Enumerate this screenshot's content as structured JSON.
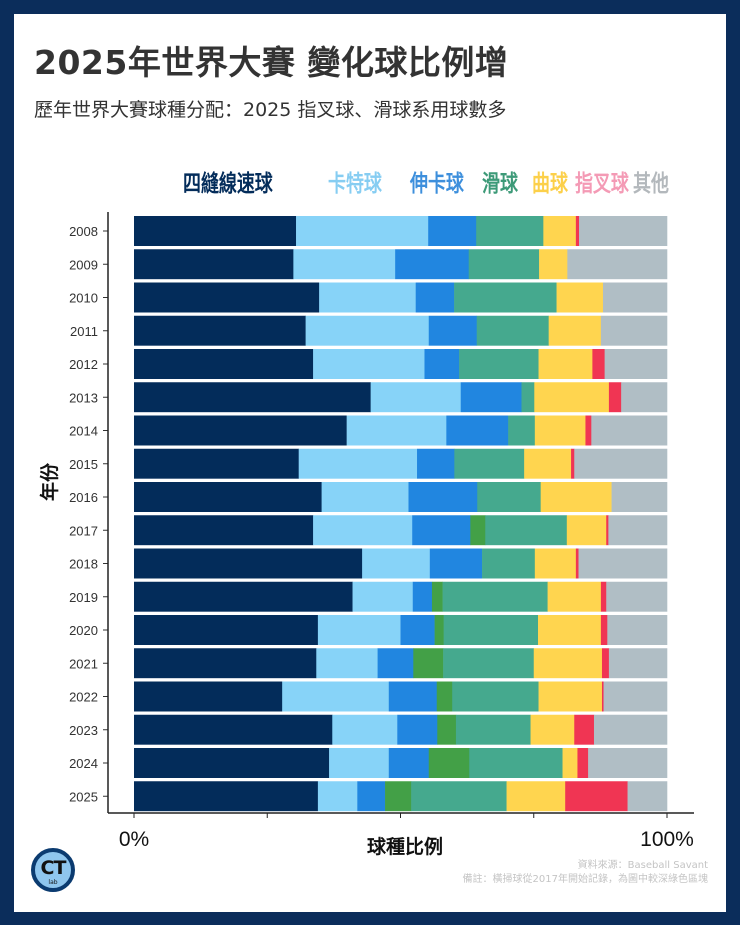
{
  "header": {
    "title": "2025年世界大賽 變化球比例增",
    "subtitle": "歷年世界大賽球種分配：2025 指叉球、滑球系用球數多"
  },
  "footer": {
    "source": "資料來源：Baseball Savant",
    "note": "備註：橫掃球從2017年開始記錄，為圖中較深綠色區塊",
    "logo_text": "CT",
    "logo_sub": "lab"
  },
  "chart_data": {
    "type": "bar",
    "orientation": "horizontal-stacked-100",
    "title": "2025年世界大賽 變化球比例增",
    "xlabel": "球種比例",
    "ylabel": "年份",
    "xlim": [
      0,
      100
    ],
    "x_tick_labels": [
      "0%",
      "100%"
    ],
    "legend_placement": "top",
    "categories": [
      "2008",
      "2009",
      "2010",
      "2011",
      "2012",
      "2013",
      "2014",
      "2015",
      "2016",
      "2017",
      "2018",
      "2019",
      "2020",
      "2021",
      "2022",
      "2023",
      "2024",
      "2025"
    ],
    "series": [
      {
        "name": "四縫線速球",
        "legend": true,
        "color": "#032c5a",
        "legend_color": "#032c5a",
        "values": [
          30.4,
          29.9,
          34.7,
          32.2,
          33.6,
          44.4,
          39.9,
          30.9,
          35.2,
          33.6,
          42.8,
          41.0,
          34.5,
          34.2,
          27.8,
          37.2,
          36.6,
          34.5
        ]
      },
      {
        "name": "卡特球",
        "legend": true,
        "color": "#87d3f8",
        "legend_color": "#86cdf2",
        "values": [
          24.8,
          19.1,
          18.1,
          23.1,
          20.9,
          16.9,
          18.7,
          22.2,
          16.3,
          18.6,
          12.7,
          11.3,
          15.5,
          11.5,
          20.0,
          12.2,
          11.2,
          7.4
        ]
      },
      {
        "name": "伸卡球",
        "legend": true,
        "color": "#2186e0",
        "legend_color": "#3d8fdc",
        "values": [
          9.0,
          13.8,
          7.2,
          9.0,
          6.5,
          11.4,
          11.6,
          7.0,
          12.9,
          10.9,
          9.8,
          3.6,
          6.4,
          6.7,
          9.0,
          7.5,
          7.5,
          5.2
        ]
      },
      {
        "name": "橫掃球",
        "legend": false,
        "color": "#43a047",
        "legend_color": "#43a047",
        "values": [
          0,
          0,
          0,
          0,
          0,
          0,
          0,
          0,
          0,
          2.8,
          0,
          2.0,
          1.7,
          5.6,
          2.9,
          3.5,
          7.6,
          4.9
        ]
      },
      {
        "name": "滑球",
        "legend": true,
        "color": "#45a98e",
        "legend_color": "#3d9a78",
        "values": [
          12.6,
          13.2,
          19.2,
          13.5,
          14.9,
          2.4,
          5.0,
          13.1,
          11.9,
          15.3,
          9.9,
          19.7,
          17.7,
          17.0,
          16.2,
          14.0,
          17.5,
          17.9
        ]
      },
      {
        "name": "曲球",
        "legend": true,
        "color": "#ffd54f",
        "legend_color": "#fcd04a",
        "values": [
          6.1,
          5.3,
          8.7,
          9.8,
          10.1,
          14.0,
          9.5,
          8.8,
          13.3,
          7.4,
          7.7,
          10.0,
          11.8,
          12.8,
          11.9,
          8.2,
          2.8,
          11.0
        ]
      },
      {
        "name": "指叉球",
        "legend": true,
        "color": "#f03553",
        "legend_color": "#f49ab5",
        "values": [
          0.6,
          0,
          0,
          0,
          2.3,
          2.3,
          1.1,
          0.6,
          0,
          0.4,
          0.5,
          1.0,
          1.2,
          1.3,
          0.3,
          3.7,
          2.0,
          11.7
        ]
      },
      {
        "name": "其他",
        "legend": true,
        "color": "#b0bec5",
        "legend_color": "#b3b8bc",
        "values": [
          16.5,
          18.7,
          12.0,
          12.4,
          11.7,
          8.6,
          14.2,
          17.4,
          10.4,
          11.0,
          16.6,
          11.4,
          11.2,
          10.9,
          11.9,
          13.7,
          14.8,
          7.4
        ]
      }
    ]
  }
}
